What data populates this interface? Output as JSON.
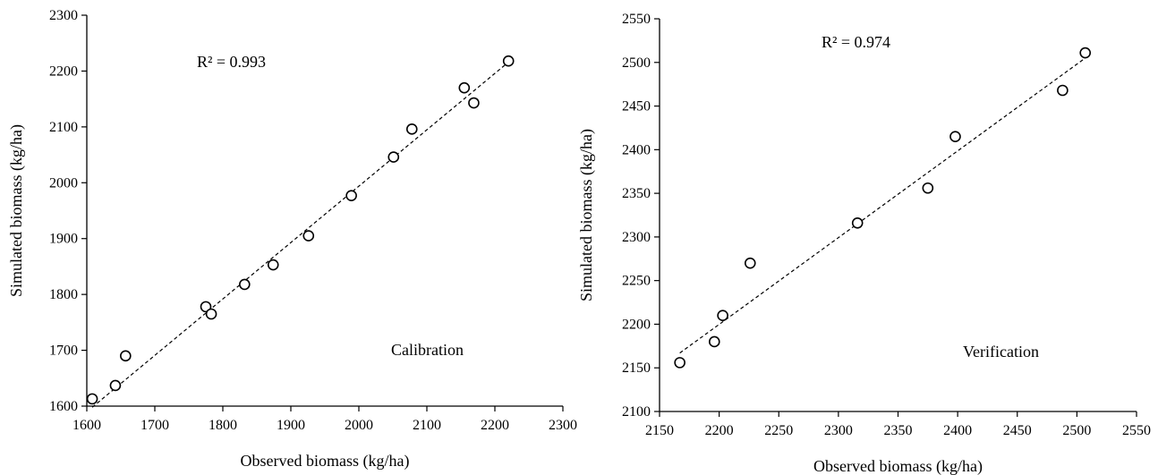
{
  "chart_data": [
    {
      "type": "scatter",
      "title": "",
      "xlabel": "Observed biomass (kg/ha)",
      "ylabel": "Simulated biomass (kg/ha)",
      "xlim": [
        1600,
        2300
      ],
      "ylim": [
        1600,
        2300
      ],
      "xticks": [
        1600,
        1700,
        1800,
        1900,
        2000,
        2100,
        2200,
        2300
      ],
      "yticks": [
        1600,
        1700,
        1800,
        1900,
        2000,
        2100,
        2200,
        2300
      ],
      "grid": false,
      "r2_text": "R² = 0.993",
      "panel_label": "Calibration",
      "points": [
        {
          "x": 1608,
          "y": 1613
        },
        {
          "x": 1642,
          "y": 1637
        },
        {
          "x": 1657,
          "y": 1690
        },
        {
          "x": 1775,
          "y": 1778
        },
        {
          "x": 1783,
          "y": 1765
        },
        {
          "x": 1832,
          "y": 1818
        },
        {
          "x": 1874,
          "y": 1853
        },
        {
          "x": 1926,
          "y": 1905
        },
        {
          "x": 1989,
          "y": 1977
        },
        {
          "x": 2051,
          "y": 2046
        },
        {
          "x": 2078,
          "y": 2096
        },
        {
          "x": 2155,
          "y": 2170
        },
        {
          "x": 2169,
          "y": 2143
        },
        {
          "x": 2220,
          "y": 2218
        }
      ],
      "trendline": {
        "x": [
          1608,
          2220
        ],
        "y": [
          1598,
          2216
        ]
      }
    },
    {
      "type": "scatter",
      "title": "",
      "xlabel": "Observed biomass (kg/ha)",
      "ylabel": "Simulated biomass (kg/ha)",
      "xlim": [
        2150,
        2550
      ],
      "ylim": [
        2100,
        2550
      ],
      "xticks": [
        2150,
        2200,
        2250,
        2300,
        2350,
        2400,
        2450,
        2500,
        2550
      ],
      "yticks": [
        2100,
        2150,
        2200,
        2250,
        2300,
        2350,
        2400,
        2450,
        2500,
        2550
      ],
      "grid": false,
      "r2_text": "R² = 0.974",
      "panel_label": "Verification",
      "points": [
        {
          "x": 2167,
          "y": 2156
        },
        {
          "x": 2196,
          "y": 2180
        },
        {
          "x": 2203,
          "y": 2210
        },
        {
          "x": 2226,
          "y": 2270
        },
        {
          "x": 2316,
          "y": 2316
        },
        {
          "x": 2375,
          "y": 2356
        },
        {
          "x": 2398,
          "y": 2415
        },
        {
          "x": 2488,
          "y": 2468
        },
        {
          "x": 2507,
          "y": 2511
        }
      ],
      "trendline": {
        "x": [
          2167,
          2507
        ],
        "y": [
          2167,
          2505
        ]
      }
    }
  ]
}
